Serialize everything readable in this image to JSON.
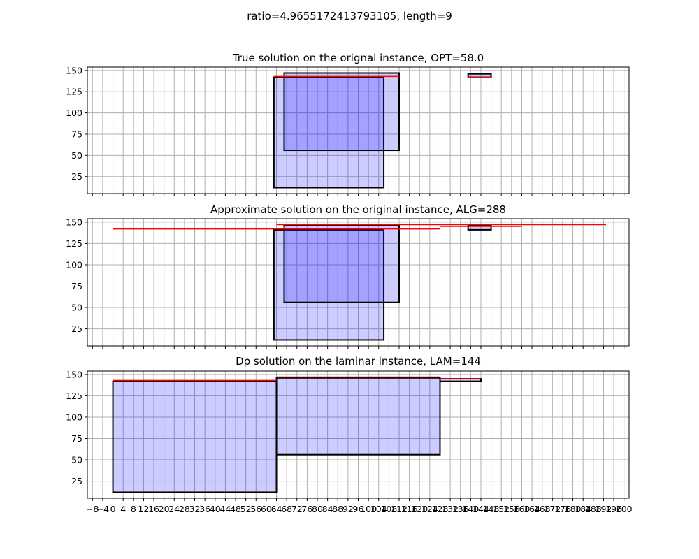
{
  "figure": {
    "suptitle": "ratio=4.9655172413793105, length=9"
  },
  "colors": {
    "grid": "#b0b0b0",
    "axis": "#000000",
    "rect_fill": "#0000ff",
    "rect_edge": "#000000",
    "line": "#ff0000"
  },
  "chart_data": [
    {
      "type": "rectangles",
      "title": "True solution on the orignal instance, OPT=58.0",
      "xlim": [
        -10,
        202
      ],
      "ylim": [
        5,
        154
      ],
      "xticks_shown": false,
      "yticks": [
        25,
        50,
        75,
        100,
        125,
        150
      ],
      "grid": true,
      "rects": [
        {
          "x0": 63,
          "x1": 106,
          "y0": 12,
          "y1": 142,
          "alpha": 0.2
        },
        {
          "x0": 67,
          "x1": 112,
          "y0": 56,
          "y1": 147,
          "alpha": 0.2
        },
        {
          "x0": 139,
          "x1": 148,
          "y0": 142,
          "y1": 146,
          "alpha": 0.2
        }
      ],
      "lines": [
        {
          "x0": 63,
          "x1": 112,
          "y": 143
        },
        {
          "x0": 139,
          "x1": 148,
          "y": 142
        }
      ]
    },
    {
      "type": "rectangles",
      "title": "Approximate solution on the original instance, ALG=288",
      "xlim": [
        -10,
        202
      ],
      "ylim": [
        5,
        154
      ],
      "xticks_shown": false,
      "yticks": [
        25,
        50,
        75,
        100,
        125,
        150
      ],
      "grid": true,
      "rects": [
        {
          "x0": 63,
          "x1": 106,
          "y0": 12,
          "y1": 141,
          "alpha": 0.2
        },
        {
          "x0": 67,
          "x1": 112,
          "y0": 56,
          "y1": 146,
          "alpha": 0.2
        },
        {
          "x0": 139,
          "x1": 148,
          "y0": 141,
          "y1": 146,
          "alpha": 0.2
        }
      ],
      "lines": [
        {
          "x0": 0,
          "x1": 128,
          "y": 142
        },
        {
          "x0": 64,
          "x1": 193,
          "y": 147
        },
        {
          "x0": 128,
          "x1": 160,
          "y": 145
        }
      ]
    },
    {
      "type": "rectangles",
      "title": "Dp solution on the laminar instance, LAM=144",
      "xlim": [
        -10,
        202
      ],
      "ylim": [
        5,
        154
      ],
      "xlabel": "",
      "ylabel": "",
      "xticks": [
        -8,
        -4,
        0,
        4,
        8,
        12,
        16,
        20,
        24,
        28,
        32,
        36,
        40,
        44,
        48,
        52,
        56,
        60,
        64,
        68,
        72,
        76,
        80,
        84,
        88,
        92,
        96,
        100,
        104,
        108,
        112,
        116,
        120,
        124,
        128,
        132,
        136,
        140,
        144,
        148,
        152,
        156,
        160,
        164,
        168,
        172,
        176,
        180,
        184,
        188,
        192,
        196,
        200
      ],
      "xtick_labels": [
        "−8",
        "−4",
        "0",
        "4",
        "8",
        "12",
        "16",
        "20",
        "24",
        "28",
        "32",
        "36",
        "40",
        "44",
        "48",
        "52",
        "56",
        "60",
        "64",
        "68",
        "72",
        "76",
        "80",
        "84",
        "88",
        "92",
        "96",
        "100",
        "104",
        "108",
        "112",
        "116",
        "120",
        "124",
        "128",
        "132",
        "136",
        "140",
        "144",
        "148",
        "152",
        "156",
        "160",
        "164",
        "168",
        "172",
        "176",
        "180",
        "184",
        "188",
        "192",
        "196",
        "200"
      ],
      "yticks": [
        25,
        50,
        75,
        100,
        125,
        150
      ],
      "grid": true,
      "rects": [
        {
          "x0": 0,
          "x1": 64,
          "y0": 12,
          "y1": 142,
          "alpha": 0.2
        },
        {
          "x0": 64,
          "x1": 128,
          "y0": 56,
          "y1": 146,
          "alpha": 0.2
        },
        {
          "x0": 128,
          "x1": 144,
          "y0": 142,
          "y1": 145,
          "alpha": 0.2
        }
      ],
      "lines": [
        {
          "x0": 0,
          "x1": 64,
          "y": 143
        },
        {
          "x0": 64,
          "x1": 128,
          "y": 147
        },
        {
          "x0": 128,
          "x1": 144,
          "y": 145
        }
      ]
    }
  ]
}
